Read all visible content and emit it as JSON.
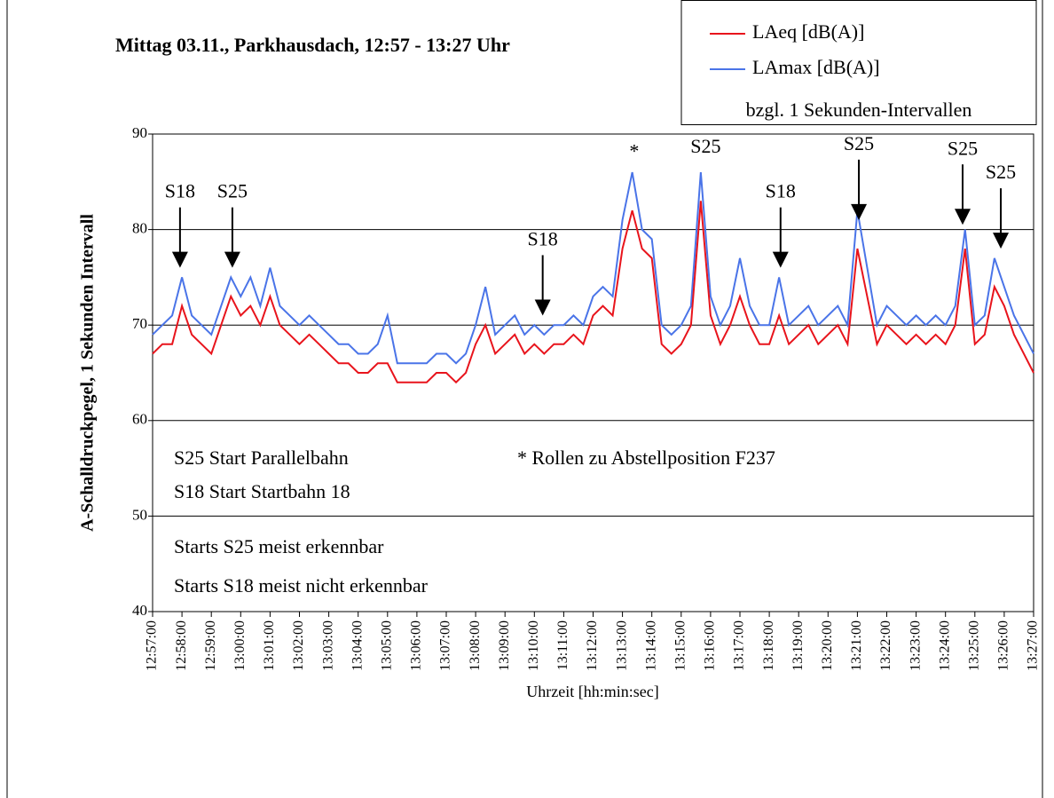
{
  "chart_data": {
    "type": "line",
    "title": "Mittag 03.11., Parkhausdach, 12:57 - 13:27 Uhr",
    "y_label": "A-Schalldruckpegel, 1 Sekunden Intervall",
    "x_label": "Uhrzeit [hh:min:sec]",
    "legend_note": "bzgl. 1 Sekunden-Intervallen",
    "legend_position": "top-right",
    "grid": true,
    "ylim": [
      40,
      90
    ],
    "yticks": [
      40,
      50,
      60,
      70,
      80,
      90
    ],
    "xlim": [
      "12:57:00",
      "13:27:00"
    ],
    "xticks": [
      "12:57:00",
      "12:58:00",
      "12:59:00",
      "13:00:00",
      "13:01:00",
      "13:02:00",
      "13:03:00",
      "13:04:00",
      "13:05:00",
      "13:06:00",
      "13:07:00",
      "13:08:00",
      "13:09:00",
      "13:10:00",
      "13:11:00",
      "13:12:00",
      "13:13:00",
      "13:14:00",
      "13:15:00",
      "13:16:00",
      "13:17:00",
      "13:18:00",
      "13:19:00",
      "13:20:00",
      "13:21:00",
      "13:22:00",
      "13:23:00",
      "13:24:00",
      "13:25:00",
      "13:26:00",
      "13:27:00"
    ],
    "x": [
      "12:57:00",
      "12:57:20",
      "12:57:40",
      "12:58:00",
      "12:58:20",
      "12:58:40",
      "12:59:00",
      "12:59:20",
      "12:59:40",
      "13:00:00",
      "13:00:20",
      "13:00:40",
      "13:01:00",
      "13:01:20",
      "13:01:40",
      "13:02:00",
      "13:02:20",
      "13:02:40",
      "13:03:00",
      "13:03:20",
      "13:03:40",
      "13:04:00",
      "13:04:20",
      "13:04:40",
      "13:05:00",
      "13:05:20",
      "13:05:40",
      "13:06:00",
      "13:06:20",
      "13:06:40",
      "13:07:00",
      "13:07:20",
      "13:07:40",
      "13:08:00",
      "13:08:20",
      "13:08:40",
      "13:09:00",
      "13:09:20",
      "13:09:40",
      "13:10:00",
      "13:10:20",
      "13:10:40",
      "13:11:00",
      "13:11:20",
      "13:11:40",
      "13:12:00",
      "13:12:20",
      "13:12:40",
      "13:13:00",
      "13:13:20",
      "13:13:40",
      "13:14:00",
      "13:14:20",
      "13:14:40",
      "13:15:00",
      "13:15:20",
      "13:15:40",
      "13:16:00",
      "13:16:20",
      "13:16:40",
      "13:17:00",
      "13:17:20",
      "13:17:40",
      "13:18:00",
      "13:18:20",
      "13:18:40",
      "13:19:00",
      "13:19:20",
      "13:19:40",
      "13:20:00",
      "13:20:20",
      "13:20:40",
      "13:21:00",
      "13:21:20",
      "13:21:40",
      "13:22:00",
      "13:22:20",
      "13:22:40",
      "13:23:00",
      "13:23:20",
      "13:23:40",
      "13:24:00",
      "13:24:20",
      "13:24:40",
      "13:25:00",
      "13:25:20",
      "13:25:40",
      "13:26:00",
      "13:26:20",
      "13:26:40",
      "13:27:00"
    ],
    "series": [
      {
        "name": "LAmax [dB(A)]",
        "color": "#4a74e8",
        "values": [
          69,
          70,
          71,
          75,
          71,
          70,
          69,
          72,
          75,
          73,
          75,
          72,
          76,
          72,
          71,
          70,
          71,
          70,
          69,
          68,
          68,
          67,
          67,
          68,
          71,
          66,
          66,
          66,
          66,
          67,
          67,
          66,
          67,
          70,
          74,
          69,
          70,
          71,
          69,
          70,
          69,
          70,
          70,
          71,
          70,
          73,
          74,
          73,
          81,
          86,
          80,
          79,
          70,
          69,
          70,
          72,
          86,
          73,
          70,
          72,
          77,
          72,
          70,
          70,
          75,
          70,
          71,
          72,
          70,
          71,
          72,
          70,
          82,
          76,
          70,
          72,
          71,
          70,
          71,
          70,
          71,
          70,
          72,
          80,
          70,
          71,
          77,
          74,
          71,
          69,
          67
        ]
      },
      {
        "name": "LAeq [dB(A)]",
        "color": "#e8141c",
        "values": [
          67,
          68,
          68,
          72,
          69,
          68,
          67,
          70,
          73,
          71,
          72,
          70,
          73,
          70,
          69,
          68,
          69,
          68,
          67,
          66,
          66,
          65,
          65,
          66,
          66,
          64,
          64,
          64,
          64,
          65,
          65,
          64,
          65,
          68,
          70,
          67,
          68,
          69,
          67,
          68,
          67,
          68,
          68,
          69,
          68,
          71,
          72,
          71,
          78,
          82,
          78,
          77,
          68,
          67,
          68,
          70,
          83,
          71,
          68,
          70,
          73,
          70,
          68,
          68,
          71,
          68,
          69,
          70,
          68,
          69,
          70,
          68,
          78,
          73,
          68,
          70,
          69,
          68,
          69,
          68,
          69,
          68,
          70,
          78,
          68,
          69,
          74,
          72,
          69,
          67,
          65
        ]
      }
    ],
    "annotations": [
      {
        "text": "S18",
        "x": "12:57:56",
        "y": 76,
        "arrow": true
      },
      {
        "text": "S25",
        "x": "12:59:43",
        "y": 76,
        "arrow": true
      },
      {
        "text": "S18",
        "x": "13:10:17",
        "y": 71,
        "arrow": true
      },
      {
        "text": "*",
        "x": "13:13:24",
        "y": 88,
        "arrow": false
      },
      {
        "text": "S25",
        "x": "13:15:50",
        "y": 88.5,
        "arrow": false
      },
      {
        "text": "S18",
        "x": "13:18:23",
        "y": 76,
        "arrow": true
      },
      {
        "text": "S25",
        "x": "13:21:03",
        "y": 81,
        "arrow": true
      },
      {
        "text": "S25",
        "x": "13:24:35",
        "y": 80.5,
        "arrow": true
      },
      {
        "text": "S25",
        "x": "13:25:53",
        "y": 78,
        "arrow": true
      }
    ],
    "notes": [
      "S25 Start Parallelbahn",
      "S18 Start Startbahn 18",
      "* Rollen zu Abstellposition F237",
      "Starts S25 meist erkennbar",
      "Starts S18 meist nicht erkennbar"
    ]
  }
}
